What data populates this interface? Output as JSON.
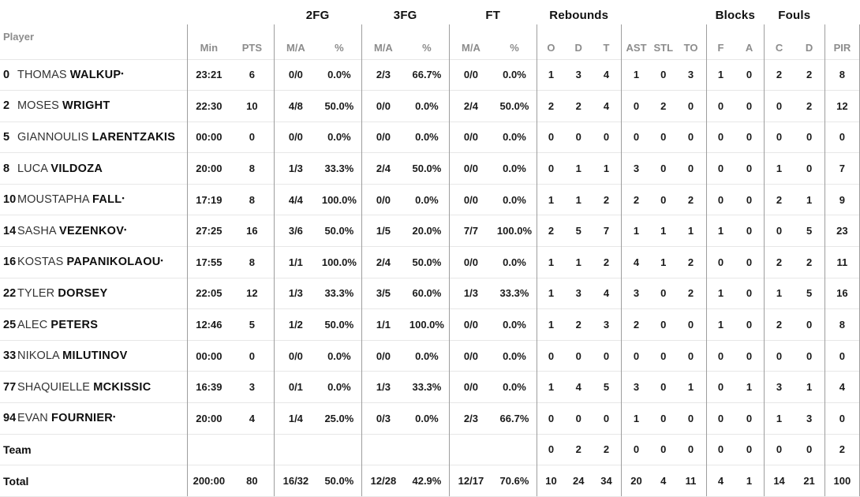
{
  "table": {
    "player_col_label": "Player",
    "starter_marker": "•",
    "groups": {
      "fg2": "2FG",
      "fg3": "3FG",
      "ft": "FT",
      "rebounds": "Rebounds",
      "blocks": "Blocks",
      "fouls": "Fouls"
    },
    "columns": [
      "Min",
      "PTS",
      "M/A",
      "%",
      "M/A",
      "%",
      "M/A",
      "%",
      "O",
      "D",
      "T",
      "AST",
      "STL",
      "TO",
      "F",
      "A",
      "C",
      "D",
      "PIR"
    ],
    "rows": [
      {
        "number": "0",
        "first": "THOMAS",
        "last": "WALKUP",
        "starter": true,
        "stats": [
          "23:21",
          "6",
          "0/0",
          "0.0%",
          "2/3",
          "66.7%",
          "0/0",
          "0.0%",
          "1",
          "3",
          "4",
          "1",
          "0",
          "3",
          "1",
          "0",
          "2",
          "2",
          "8"
        ]
      },
      {
        "number": "2",
        "first": "MOSES",
        "last": "WRIGHT",
        "starter": false,
        "stats": [
          "22:30",
          "10",
          "4/8",
          "50.0%",
          "0/0",
          "0.0%",
          "2/4",
          "50.0%",
          "2",
          "2",
          "4",
          "0",
          "2",
          "0",
          "0",
          "0",
          "0",
          "2",
          "12"
        ]
      },
      {
        "number": "5",
        "first": "GIANNOULIS",
        "last": "LARENTZAKIS",
        "starter": false,
        "stats": [
          "00:00",
          "0",
          "0/0",
          "0.0%",
          "0/0",
          "0.0%",
          "0/0",
          "0.0%",
          "0",
          "0",
          "0",
          "0",
          "0",
          "0",
          "0",
          "0",
          "0",
          "0",
          "0"
        ]
      },
      {
        "number": "8",
        "first": "LUCA",
        "last": "VILDOZA",
        "starter": false,
        "stats": [
          "20:00",
          "8",
          "1/3",
          "33.3%",
          "2/4",
          "50.0%",
          "0/0",
          "0.0%",
          "0",
          "1",
          "1",
          "3",
          "0",
          "0",
          "0",
          "0",
          "1",
          "0",
          "7"
        ]
      },
      {
        "number": "10",
        "first": "MOUSTAPHA",
        "last": "FALL",
        "starter": true,
        "stats": [
          "17:19",
          "8",
          "4/4",
          "100.0%",
          "0/0",
          "0.0%",
          "0/0",
          "0.0%",
          "1",
          "1",
          "2",
          "2",
          "0",
          "2",
          "0",
          "0",
          "2",
          "1",
          "9"
        ]
      },
      {
        "number": "14",
        "first": "SASHA",
        "last": "VEZENKOV",
        "starter": true,
        "stats": [
          "27:25",
          "16",
          "3/6",
          "50.0%",
          "1/5",
          "20.0%",
          "7/7",
          "100.0%",
          "2",
          "5",
          "7",
          "1",
          "1",
          "1",
          "1",
          "0",
          "0",
          "5",
          "23"
        ]
      },
      {
        "number": "16",
        "first": "KOSTAS",
        "last": "PAPANIKOLAOU",
        "starter": true,
        "stats": [
          "17:55",
          "8",
          "1/1",
          "100.0%",
          "2/4",
          "50.0%",
          "0/0",
          "0.0%",
          "1",
          "1",
          "2",
          "4",
          "1",
          "2",
          "0",
          "0",
          "2",
          "2",
          "11"
        ]
      },
      {
        "number": "22",
        "first": "TYLER",
        "last": "DORSEY",
        "starter": false,
        "stats": [
          "22:05",
          "12",
          "1/3",
          "33.3%",
          "3/5",
          "60.0%",
          "1/3",
          "33.3%",
          "1",
          "3",
          "4",
          "3",
          "0",
          "2",
          "1",
          "0",
          "1",
          "5",
          "16"
        ]
      },
      {
        "number": "25",
        "first": "ALEC",
        "last": "PETERS",
        "starter": false,
        "stats": [
          "12:46",
          "5",
          "1/2",
          "50.0%",
          "1/1",
          "100.0%",
          "0/0",
          "0.0%",
          "1",
          "2",
          "3",
          "2",
          "0",
          "0",
          "1",
          "0",
          "2",
          "0",
          "8"
        ]
      },
      {
        "number": "33",
        "first": "NIKOLA",
        "last": "MILUTINOV",
        "starter": false,
        "stats": [
          "00:00",
          "0",
          "0/0",
          "0.0%",
          "0/0",
          "0.0%",
          "0/0",
          "0.0%",
          "0",
          "0",
          "0",
          "0",
          "0",
          "0",
          "0",
          "0",
          "0",
          "0",
          "0"
        ]
      },
      {
        "number": "77",
        "first": "SHAQUIELLE",
        "last": "MCKISSIC",
        "starter": false,
        "stats": [
          "16:39",
          "3",
          "0/1",
          "0.0%",
          "1/3",
          "33.3%",
          "0/0",
          "0.0%",
          "1",
          "4",
          "5",
          "3",
          "0",
          "1",
          "0",
          "1",
          "3",
          "1",
          "4"
        ]
      },
      {
        "number": "94",
        "first": "EVAN",
        "last": "FOURNIER",
        "starter": true,
        "stats": [
          "20:00",
          "4",
          "1/4",
          "25.0%",
          "0/3",
          "0.0%",
          "2/3",
          "66.7%",
          "0",
          "0",
          "0",
          "1",
          "0",
          "0",
          "0",
          "0",
          "1",
          "3",
          "0"
        ]
      },
      {
        "label": "Team",
        "stats": [
          "",
          "",
          "",
          "",
          "",
          "",
          "",
          "",
          "0",
          "2",
          "2",
          "0",
          "0",
          "0",
          "0",
          "0",
          "0",
          "0",
          "2"
        ]
      },
      {
        "label": "Total",
        "stats": [
          "200:00",
          "80",
          "16/32",
          "50.0%",
          "12/28",
          "42.9%",
          "12/17",
          "70.6%",
          "10",
          "24",
          "34",
          "20",
          "4",
          "11",
          "4",
          "1",
          "14",
          "21",
          "100"
        ]
      }
    ]
  }
}
